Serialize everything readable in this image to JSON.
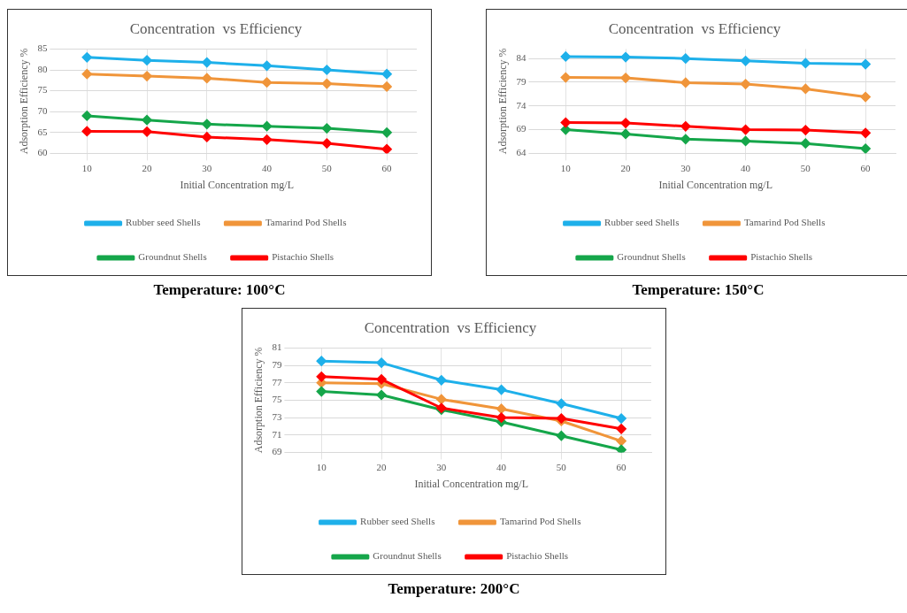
{
  "chart_data": [
    {
      "type": "line",
      "title": "Concentration  vs Efficiency",
      "xlabel": "Initial Concentration mg/L",
      "ylabel": "Adsorption Efficiency %",
      "x": [
        10,
        20,
        30,
        40,
        50,
        60
      ],
      "xlim": [
        5,
        65
      ],
      "xticks": [
        10,
        20,
        30,
        40,
        50,
        60
      ],
      "ylim": [
        60,
        85
      ],
      "yticks": [
        60,
        65,
        70,
        75,
        80,
        85
      ],
      "grid": true,
      "legend": "bottom",
      "marker": "diamond",
      "annotations": [
        "Temperature:  100°C"
      ],
      "series": [
        {
          "name": "Rubber seed Shells",
          "color": "#1eb0ea",
          "values": [
            83,
            82.3,
            81.8,
            81,
            80,
            79
          ]
        },
        {
          "name": "Tamarind Pod Shells",
          "color": "#f0953a",
          "values": [
            79,
            78.5,
            78,
            77,
            76.7,
            76
          ]
        },
        {
          "name": "Groundnut Shells",
          "color": "#15a64a",
          "values": [
            69,
            68,
            67,
            66.5,
            66,
            65
          ]
        },
        {
          "name": "Pistachio Shells",
          "color": "#ff0000",
          "values": [
            65.3,
            65.2,
            63.9,
            63.3,
            62.4,
            61
          ]
        }
      ]
    },
    {
      "type": "line",
      "title": "Concentration  vs Efficiency",
      "xlabel": "Initial Concentration mg/L",
      "ylabel": "Adsorption Efficiency %",
      "x": [
        10,
        20,
        30,
        40,
        50,
        60
      ],
      "xlim": [
        5,
        65
      ],
      "xticks": [
        10,
        20,
        30,
        40,
        50,
        60
      ],
      "ylim": [
        64,
        86
      ],
      "yticks": [
        64,
        69,
        74,
        79,
        84
      ],
      "grid": true,
      "legend": "bottom",
      "marker": "diamond",
      "annotations": [
        "Temperature:  150°C"
      ],
      "series": [
        {
          "name": "Rubber seed Shells",
          "color": "#1eb0ea",
          "values": [
            84.4,
            84.3,
            84,
            83.5,
            83,
            82.8
          ]
        },
        {
          "name": "Tamarind Pod Shells",
          "color": "#f0953a",
          "values": [
            80,
            79.9,
            78.9,
            78.6,
            77.6,
            75.9
          ]
        },
        {
          "name": "Groundnut Shells",
          "color": "#15a64a",
          "values": [
            69,
            68.1,
            67,
            66.6,
            66.1,
            65
          ]
        },
        {
          "name": "Pistachio Shells",
          "color": "#ff0000",
          "values": [
            70.5,
            70.4,
            69.7,
            69,
            68.9,
            68.3
          ]
        }
      ]
    },
    {
      "type": "line",
      "title": "Concentration  vs Efficiency",
      "xlabel": "Initial Concentration mg/L",
      "ylabel": "Adsorption Efficiency %",
      "x": [
        10,
        20,
        30,
        40,
        50,
        60
      ],
      "xlim": [
        5,
        65
      ],
      "xticks": [
        10,
        20,
        30,
        40,
        50,
        60
      ],
      "ylim": [
        69,
        81
      ],
      "yticks": [
        69,
        71,
        73,
        75,
        77,
        79,
        81
      ],
      "grid": true,
      "legend": "bottom",
      "marker": "diamond",
      "annotations": [
        "Temperature:  200°C"
      ],
      "series": [
        {
          "name": "Rubber seed Shells",
          "color": "#1eb0ea",
          "values": [
            79.5,
            79.3,
            77.3,
            76.2,
            74.6,
            72.9
          ]
        },
        {
          "name": "Tamarind Pod Shells",
          "color": "#f0953a",
          "values": [
            77,
            76.9,
            75.1,
            74,
            72.6,
            70.3
          ]
        },
        {
          "name": "Groundnut Shells",
          "color": "#15a64a",
          "values": [
            76,
            75.6,
            73.9,
            72.5,
            70.9,
            69.3
          ]
        },
        {
          "name": "Pistachio Shells",
          "color": "#ff0000",
          "values": [
            77.7,
            77.4,
            74.1,
            73,
            72.9,
            71.7
          ]
        }
      ]
    }
  ]
}
